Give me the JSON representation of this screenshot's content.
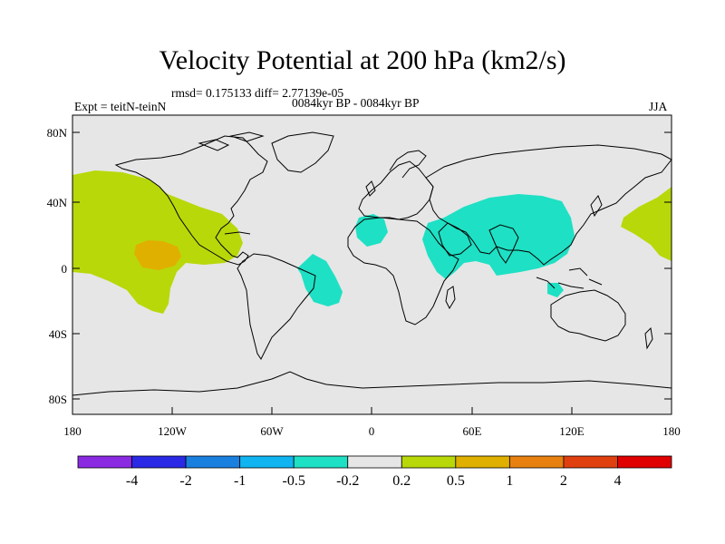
{
  "title": "Velocity Potential at 200 hPa (km2/s)",
  "stats_text": "rmsd= 0.175133 diff= 2.77139e-05",
  "experiment": "Expt = teitN-teinN",
  "period": "0084kyr BP - 0084kyr BP",
  "season": "JJA",
  "axes": {
    "y_ticks": [
      "80N",
      "40N",
      "0",
      "40S",
      "80S"
    ],
    "x_ticks": [
      "180",
      "120W",
      "60W",
      "0",
      "60E",
      "120E",
      "180"
    ]
  },
  "colorbar": {
    "colors": [
      "#8a2be2",
      "#2a2ae6",
      "#1a80e0",
      "#10b4f0",
      "#1ee0c4",
      "#e6e6e6",
      "#b8d80a",
      "#e0b000",
      "#e88010",
      "#e04010",
      "#e00000"
    ],
    "labels": [
      "-4",
      "-2",
      "-1",
      "-0.5",
      "-0.2",
      "0.2",
      "0.5",
      "1",
      "2",
      "4"
    ]
  },
  "colors": {
    "background": "#e6e6e6",
    "positive_weak": "#b8d80a",
    "positive_mid": "#e0b000",
    "negative_weak": "#1ee0c4",
    "coast": "#000000"
  }
}
